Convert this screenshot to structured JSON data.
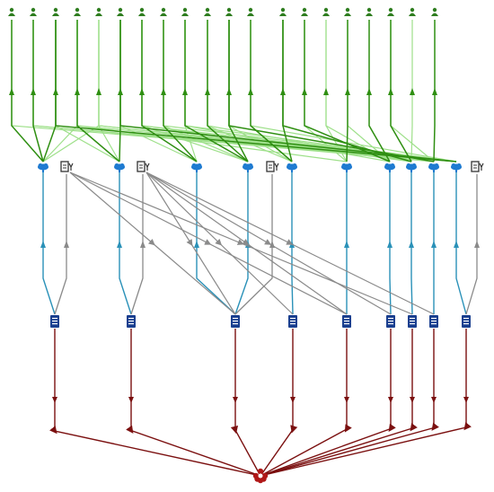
{
  "colors": {
    "background": "#ffffff",
    "edge_top_dark": "#2f8f12",
    "edge_top_light": "#9ee08a",
    "edge_mid_blue": "#2a91b8",
    "edge_mid_gray": "#8a8a8a",
    "edge_bottom": "#7b1010",
    "node_top": "#2e7d1f",
    "node_blue": "#1f7bd1",
    "node_doc": "#1a3f8f",
    "node_root": "#b01818",
    "node_gear": "#333333"
  },
  "icons": {
    "top_row": "person-icon",
    "blue_row": "cloud-icon",
    "gray_row": "config-icon",
    "document_row": "document-icon",
    "root": "flower-icon"
  },
  "tiers": {
    "top_row_count": 20,
    "blue_node_count": 11,
    "gray_node_count": 3,
    "document_node_count": 9,
    "root_node_count": 1
  }
}
